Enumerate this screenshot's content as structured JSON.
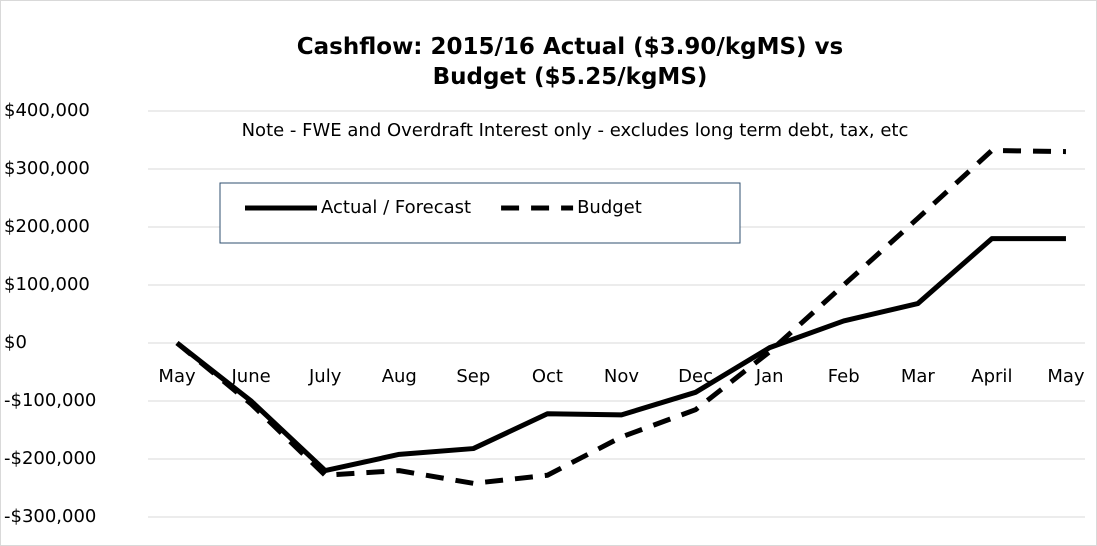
{
  "chart_data": {
    "type": "line",
    "title": "Cashflow: 2015/16 Actual ($3.90/kgMS) vs Budget ($5.25/kgMS)",
    "annotation": "Note - FWE and Overdraft Interest only - excludes  long term debt, tax, etc",
    "categories": [
      "May",
      "June",
      "July",
      "Aug",
      "Sep",
      "Oct",
      "Nov",
      "Dec",
      "Jan",
      "Feb",
      "Mar",
      "April",
      "May"
    ],
    "series": [
      {
        "name": "Actual / Forecast",
        "color": "#000000",
        "dashed": false,
        "values": [
          0,
          -100000,
          -220000,
          -192000,
          -182000,
          -122000,
          -124000,
          -85000,
          -8000,
          38000,
          68000,
          180000,
          180000
        ]
      },
      {
        "name": "Budget",
        "color": "#000000",
        "dashed": true,
        "values": [
          0,
          -105000,
          -228000,
          -220000,
          -242000,
          -228000,
          -162000,
          -115000,
          -15000,
          100000,
          215000,
          332000,
          330000
        ]
      }
    ],
    "ylim": [
      -300000,
      400000
    ],
    "yticks": [
      {
        "value": 400000,
        "label": "$400,000"
      },
      {
        "value": 300000,
        "label": "$300,000"
      },
      {
        "value": 200000,
        "label": "$200,000"
      },
      {
        "value": 100000,
        "label": "$100,000"
      },
      {
        "value": 0,
        "label": "$0"
      },
      {
        "value": -100000,
        "label": "-$100,000"
      },
      {
        "value": -200000,
        "label": "-$200,000"
      },
      {
        "value": -300000,
        "label": "-$300,000"
      }
    ],
    "grid": true
  }
}
